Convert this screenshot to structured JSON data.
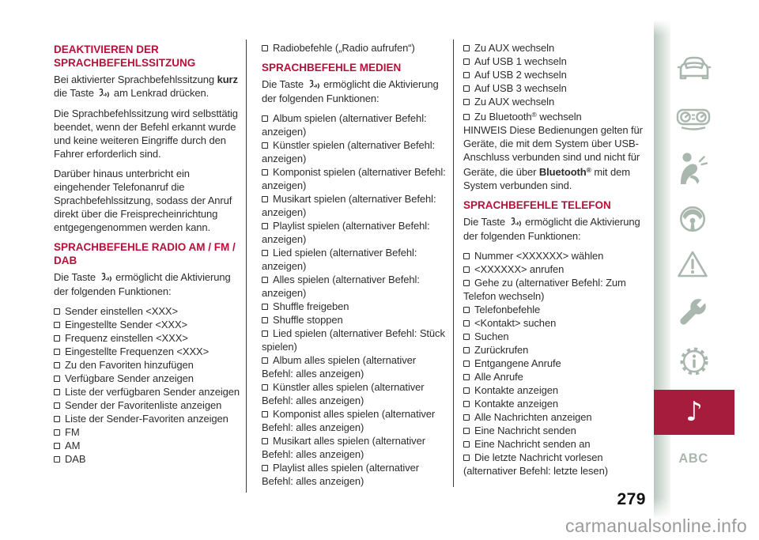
{
  "page": {
    "number": "279",
    "watermark": "carmanualsonline.info"
  },
  "colors": {
    "heading_red": "#b8103a",
    "active_red": "#a61c3d",
    "icon_gray": "#a9b7ae",
    "text": "#2d2d2d"
  },
  "sidebar": {
    "icons": [
      "car",
      "instrument-cluster",
      "airbag",
      "steering-wheel",
      "warning-triangle",
      "wrench",
      "info-gear",
      "music-note",
      "abc"
    ],
    "active_item": "music-note",
    "music_note_glyph": "♪",
    "abc_label": "ABC"
  },
  "columns": [
    {
      "blocks": [
        {
          "type": "heading",
          "text": "DEAKTIVIEREN DER SPRACHBEFEHLSSITZUNG"
        },
        {
          "type": "para",
          "runs": [
            {
              "t": "Bei aktivierter Sprachbefehlssitzung "
            },
            {
              "t": "kurz",
              "b": true
            },
            {
              "t": " die Taste "
            },
            {
              "icon": "voice"
            },
            {
              "t": " am Lenkrad drücken."
            }
          ]
        },
        {
          "type": "para",
          "runs": [
            {
              "t": "Die Sprachbefehlssitzung wird selbsttätig beendet, wenn der Befehl erkannt wurde und keine weiteren Eingriffe durch den Fahrer erforderlich sind."
            }
          ]
        },
        {
          "type": "para",
          "runs": [
            {
              "t": "Darüber hinaus unterbricht ein eingehender Telefonanruf die Sprachbefehlssitzung, sodass der Anruf direkt über die Freisprecheinrichtung entgegengenommen werden kann."
            }
          ]
        },
        {
          "type": "heading",
          "text": "SPRACHBEFEHLE RADIO AM / FM / DAB"
        },
        {
          "type": "para",
          "runs": [
            {
              "t": "Die Taste "
            },
            {
              "icon": "voice"
            },
            {
              "t": " ermöglicht die Aktivierung der folgenden Funktionen:"
            }
          ]
        },
        {
          "type": "item",
          "runs": [
            {
              "t": "Sender einstellen <XXX>"
            }
          ]
        },
        {
          "type": "item",
          "runs": [
            {
              "t": "Eingestellte Sender <XXX>"
            }
          ]
        },
        {
          "type": "item",
          "runs": [
            {
              "t": "Frequenz einstellen <XXX>"
            }
          ]
        },
        {
          "type": "item",
          "runs": [
            {
              "t": "Eingestellte Frequenzen <XXX>"
            }
          ]
        },
        {
          "type": "item",
          "runs": [
            {
              "t": "Zu den Favoriten hinzufügen"
            }
          ]
        },
        {
          "type": "item",
          "runs": [
            {
              "t": "Verfügbare Sender anzeigen"
            }
          ]
        },
        {
          "type": "item",
          "runs": [
            {
              "t": "Liste der verfügbaren Sender anzeigen"
            }
          ]
        },
        {
          "type": "item",
          "runs": [
            {
              "t": "Sender der Favoritenliste anzeigen"
            }
          ]
        },
        {
          "type": "item",
          "runs": [
            {
              "t": "Liste der Sender-Favoriten anzeigen"
            }
          ]
        },
        {
          "type": "item",
          "runs": [
            {
              "t": "FM"
            }
          ]
        },
        {
          "type": "item",
          "runs": [
            {
              "t": "AM"
            }
          ]
        },
        {
          "type": "item",
          "runs": [
            {
              "t": "DAB"
            }
          ]
        }
      ]
    },
    {
      "blocks": [
        {
          "type": "item",
          "runs": [
            {
              "t": "Radiobefehle („Radio aufrufen“)"
            }
          ]
        },
        {
          "type": "heading",
          "text": "SPRACHBEFEHLE MEDIEN"
        },
        {
          "type": "para",
          "runs": [
            {
              "t": "Die Taste "
            },
            {
              "icon": "voice"
            },
            {
              "t": " ermöglicht die Aktivierung der folgenden Funktionen:"
            }
          ]
        },
        {
          "type": "item",
          "runs": [
            {
              "t": "Album spielen (alternativer Befehl: anzeigen)"
            }
          ]
        },
        {
          "type": "item",
          "runs": [
            {
              "t": "Künstler spielen (alternativer Befehl: anzeigen)"
            }
          ]
        },
        {
          "type": "item",
          "runs": [
            {
              "t": "Komponist spielen (alternativer Befehl: anzeigen)"
            }
          ]
        },
        {
          "type": "item",
          "runs": [
            {
              "t": "Musikart spielen (alternativer Befehl: anzeigen)"
            }
          ]
        },
        {
          "type": "item",
          "runs": [
            {
              "t": "Playlist spielen (alternativer Befehl: anzeigen)"
            }
          ]
        },
        {
          "type": "item",
          "runs": [
            {
              "t": "Lied spielen (alternativer Befehl: anzeigen)"
            }
          ]
        },
        {
          "type": "item",
          "runs": [
            {
              "t": "Alles spielen (alternativer Befehl: anzeigen)"
            }
          ]
        },
        {
          "type": "item",
          "runs": [
            {
              "t": "Shuffle freigeben"
            }
          ]
        },
        {
          "type": "item",
          "runs": [
            {
              "t": "Shuffle stoppen"
            }
          ]
        },
        {
          "type": "item",
          "runs": [
            {
              "t": "Lied spielen (alternativer Befehl: Stück spielen)"
            }
          ]
        },
        {
          "type": "item",
          "runs": [
            {
              "t": "Album alles spielen (alternativer Befehl: alles anzeigen)"
            }
          ]
        },
        {
          "type": "item",
          "runs": [
            {
              "t": "Künstler alles spielen (alternativer Befehl: alles anzeigen)"
            }
          ]
        },
        {
          "type": "item",
          "runs": [
            {
              "t": "Komponist alles spielen (alternativer Befehl: alles anzeigen)"
            }
          ]
        },
        {
          "type": "item",
          "runs": [
            {
              "t": "Musikart alles spielen (alternativer Befehl: alles anzeigen)"
            }
          ]
        },
        {
          "type": "item",
          "runs": [
            {
              "t": "Playlist alles spielen (alternativer Befehl: alles anzeigen)"
            }
          ]
        }
      ]
    },
    {
      "blocks": [
        {
          "type": "item",
          "runs": [
            {
              "t": "Zu AUX wechseln"
            }
          ]
        },
        {
          "type": "item",
          "runs": [
            {
              "t": "Auf USB 1 wechseln"
            }
          ]
        },
        {
          "type": "item",
          "runs": [
            {
              "t": "Auf USB 2 wechseln"
            }
          ]
        },
        {
          "type": "item",
          "runs": [
            {
              "t": "Auf USB 3 wechseln"
            }
          ]
        },
        {
          "type": "item",
          "runs": [
            {
              "t": "Zu AUX wechseln"
            }
          ]
        },
        {
          "type": "item",
          "runs": [
            {
              "t": "Zu Bluetooth"
            },
            {
              "t": "®",
              "sup": true
            },
            {
              "t": " wechseln"
            }
          ]
        },
        {
          "type": "para",
          "runs": [
            {
              "t": "HINWEIS Diese Bedienungen gelten für Geräte, die mit dem System über USB-Anschluss verbunden sind und nicht für Geräte, die über "
            },
            {
              "t": "Bluetooth",
              "b": true
            },
            {
              "t": "®",
              "b": true,
              "sup": true
            },
            {
              "t": " mit dem System verbunden sind."
            }
          ]
        },
        {
          "type": "heading",
          "text": "SPRACHBEFEHLE TELEFON"
        },
        {
          "type": "para",
          "runs": [
            {
              "t": "Die Taste "
            },
            {
              "icon": "voice"
            },
            {
              "t": " ermöglicht die Aktivierung der folgenden Funktionen:"
            }
          ]
        },
        {
          "type": "item",
          "runs": [
            {
              "t": "Nummer <XXXXXX> wählen"
            }
          ]
        },
        {
          "type": "item",
          "runs": [
            {
              "t": "<XXXXXX> anrufen"
            }
          ]
        },
        {
          "type": "item",
          "runs": [
            {
              "t": "Gehe zu (alternativer Befehl: Zum Telefon wechseln)"
            }
          ]
        },
        {
          "type": "item",
          "runs": [
            {
              "t": "Telefonbefehle"
            }
          ]
        },
        {
          "type": "item",
          "runs": [
            {
              "t": "<Kontakt> suchen"
            }
          ]
        },
        {
          "type": "item",
          "runs": [
            {
              "t": "Suchen"
            }
          ]
        },
        {
          "type": "item",
          "runs": [
            {
              "t": "Zurückrufen"
            }
          ]
        },
        {
          "type": "item",
          "runs": [
            {
              "t": "Entgangene Anrufe"
            }
          ]
        },
        {
          "type": "item",
          "runs": [
            {
              "t": "Alle Anrufe"
            }
          ]
        },
        {
          "type": "item",
          "runs": [
            {
              "t": "Kontakte anzeigen"
            }
          ]
        },
        {
          "type": "item",
          "runs": [
            {
              "t": "Kontakte anzeigen"
            }
          ]
        },
        {
          "type": "item",
          "runs": [
            {
              "t": "Alle Nachrichten anzeigen"
            }
          ]
        },
        {
          "type": "item",
          "runs": [
            {
              "t": "Eine Nachricht senden"
            }
          ]
        },
        {
          "type": "item",
          "runs": [
            {
              "t": "Eine Nachricht senden an"
            }
          ]
        },
        {
          "type": "item",
          "runs": [
            {
              "t": "Die letzte Nachricht vorlesen (alternativer Befehl: letzte lesen)"
            }
          ]
        }
      ]
    }
  ]
}
